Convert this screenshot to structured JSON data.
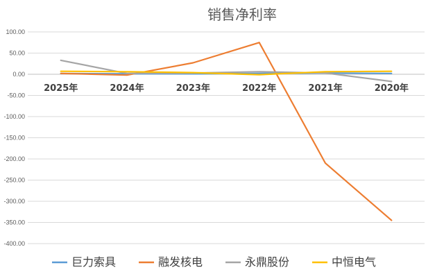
{
  "chart_data": {
    "type": "line",
    "title": "销售净利率",
    "categories": [
      "2025年",
      "2024年",
      "2023年",
      "2022年",
      "2021年",
      "2020年"
    ],
    "ylim": [
      -400,
      100
    ],
    "yticks": [
      "100.00",
      "50.00",
      "0.00",
      "-50.00",
      "-100.00",
      "-150.00",
      "-200.00",
      "-250.00",
      "-300.00",
      "-350.00",
      "-400.00"
    ],
    "grid": true,
    "legend_position": "bottom",
    "series": [
      {
        "name": "巨力索具",
        "color": "#5B9BD5",
        "values": [
          2,
          1,
          1,
          2,
          3,
          2
        ]
      },
      {
        "name": "融发核电",
        "color": "#ED7D31",
        "values": [
          2,
          -2,
          27,
          75,
          -210,
          -345
        ]
      },
      {
        "name": "永鼎股份",
        "color": "#A5A5A5",
        "values": [
          33,
          2,
          3,
          6,
          3,
          -17
        ]
      },
      {
        "name": "中恒电气",
        "color": "#FFC000",
        "values": [
          7,
          6,
          4,
          -1,
          6,
          7
        ]
      }
    ]
  }
}
